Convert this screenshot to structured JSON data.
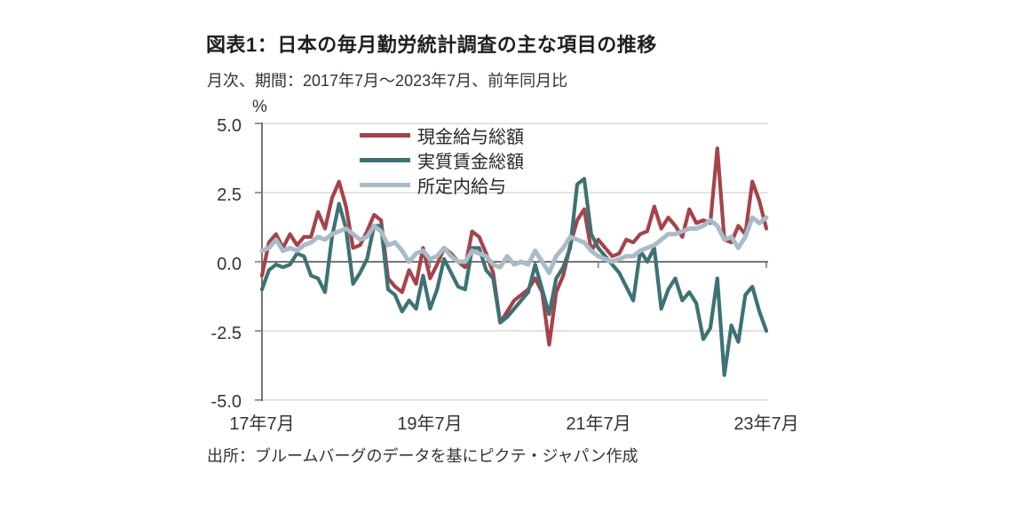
{
  "header": {
    "title": "図表1：日本の毎月勤労統計調査の主な項目の推移",
    "subtitle": "月次、期間：2017年7月～2023年7月、前年同月比"
  },
  "source": "出所：ブルームバーグのデータを基にピクテ・ジャパン作成",
  "chart_data": {
    "type": "line",
    "title": "図表1：日本の毎月勤労統計調査の主な項目の推移",
    "unit": "%",
    "x_range": {
      "start": "2017-07",
      "end": "2023-07",
      "points": 73,
      "frequency": "monthly"
    },
    "x_tick_labels": [
      "17年7月",
      "19年7月",
      "21年7月",
      "23年7月"
    ],
    "y_tick_labels": [
      "5.0",
      "2.5",
      "0.0",
      "-2.5",
      "-5.0"
    ],
    "ylim": [
      -5.0,
      5.0
    ],
    "grid": "horizontal",
    "legend_position": "top-center",
    "series": [
      {
        "name": "現金給与総額",
        "color": "#a5434b",
        "values": [
          -0.5,
          0.7,
          1.0,
          0.5,
          1.0,
          0.6,
          0.9,
          0.9,
          1.8,
          1.2,
          2.3,
          2.9,
          2.0,
          0.5,
          0.6,
          1.1,
          1.7,
          1.5,
          -0.6,
          -0.9,
          -1.1,
          -0.3,
          -0.8,
          0.5,
          -0.6,
          -0.1,
          0.5,
          0.3,
          0.0,
          -0.2,
          1.1,
          0.9,
          0.3,
          -0.4,
          -2.2,
          -1.8,
          -1.4,
          -1.2,
          -1.0,
          -0.6,
          -1.1,
          -3.0,
          -1.1,
          -0.5,
          0.6,
          1.5,
          1.9,
          0.4,
          0.8,
          0.5,
          0.2,
          0.3,
          0.8,
          0.7,
          1.0,
          1.1,
          2.0,
          1.2,
          1.6,
          1.3,
          0.9,
          1.9,
          1.4,
          1.5,
          1.4,
          4.1,
          0.8,
          0.7,
          1.3,
          1.0,
          2.9,
          2.2,
          1.2
        ]
      },
      {
        "name": "実質賃金総額",
        "color": "#3e7274",
        "values": [
          -1.0,
          -0.3,
          -0.1,
          -0.2,
          -0.1,
          0.3,
          0.2,
          -0.5,
          -0.6,
          -1.1,
          0.9,
          2.1,
          1.2,
          -0.8,
          -0.4,
          0.1,
          1.3,
          1.3,
          -1.0,
          -1.2,
          -1.8,
          -1.4,
          -1.7,
          -0.5,
          -1.7,
          -1.0,
          0.1,
          -0.4,
          -0.9,
          -1.0,
          0.5,
          0.5,
          -0.3,
          -0.6,
          -2.2,
          -2.0,
          -1.7,
          -1.4,
          -1.1,
          -0.1,
          -1.0,
          -1.9,
          -0.6,
          -0.2,
          0.5,
          2.8,
          3.0,
          1.0,
          0.5,
          0.2,
          -0.1,
          -0.4,
          -0.9,
          -1.4,
          0.4,
          0.0,
          0.5,
          -1.7,
          -1.0,
          -0.6,
          -1.4,
          -1.1,
          -1.5,
          -2.8,
          -2.4,
          -0.6,
          -4.1,
          -2.3,
          -2.9,
          -1.2,
          -0.9,
          -1.8,
          -2.5
        ]
      },
      {
        "name": "所定内給与",
        "color": "#a9bbc7",
        "values": [
          0.4,
          0.5,
          0.8,
          0.4,
          0.5,
          0.4,
          0.6,
          0.7,
          0.9,
          0.8,
          1.0,
          1.1,
          1.2,
          1.0,
          0.8,
          0.9,
          1.3,
          1.1,
          0.6,
          0.7,
          0.4,
          0.0,
          0.3,
          0.4,
          0.1,
          0.2,
          0.5,
          0.2,
          0.0,
          0.0,
          0.4,
          0.3,
          0.2,
          -0.1,
          -0.2,
          0.2,
          -0.1,
          0.0,
          -0.1,
          0.4,
          0.0,
          -0.4,
          0.2,
          0.5,
          0.9,
          0.8,
          0.7,
          0.4,
          0.2,
          0.1,
          0.0,
          0.1,
          0.2,
          0.2,
          0.4,
          0.5,
          0.6,
          0.8,
          1.0,
          1.0,
          1.1,
          1.2,
          1.2,
          1.3,
          1.5,
          1.3,
          0.8,
          0.9,
          0.5,
          0.9,
          1.6,
          1.4,
          1.6
        ]
      }
    ]
  }
}
